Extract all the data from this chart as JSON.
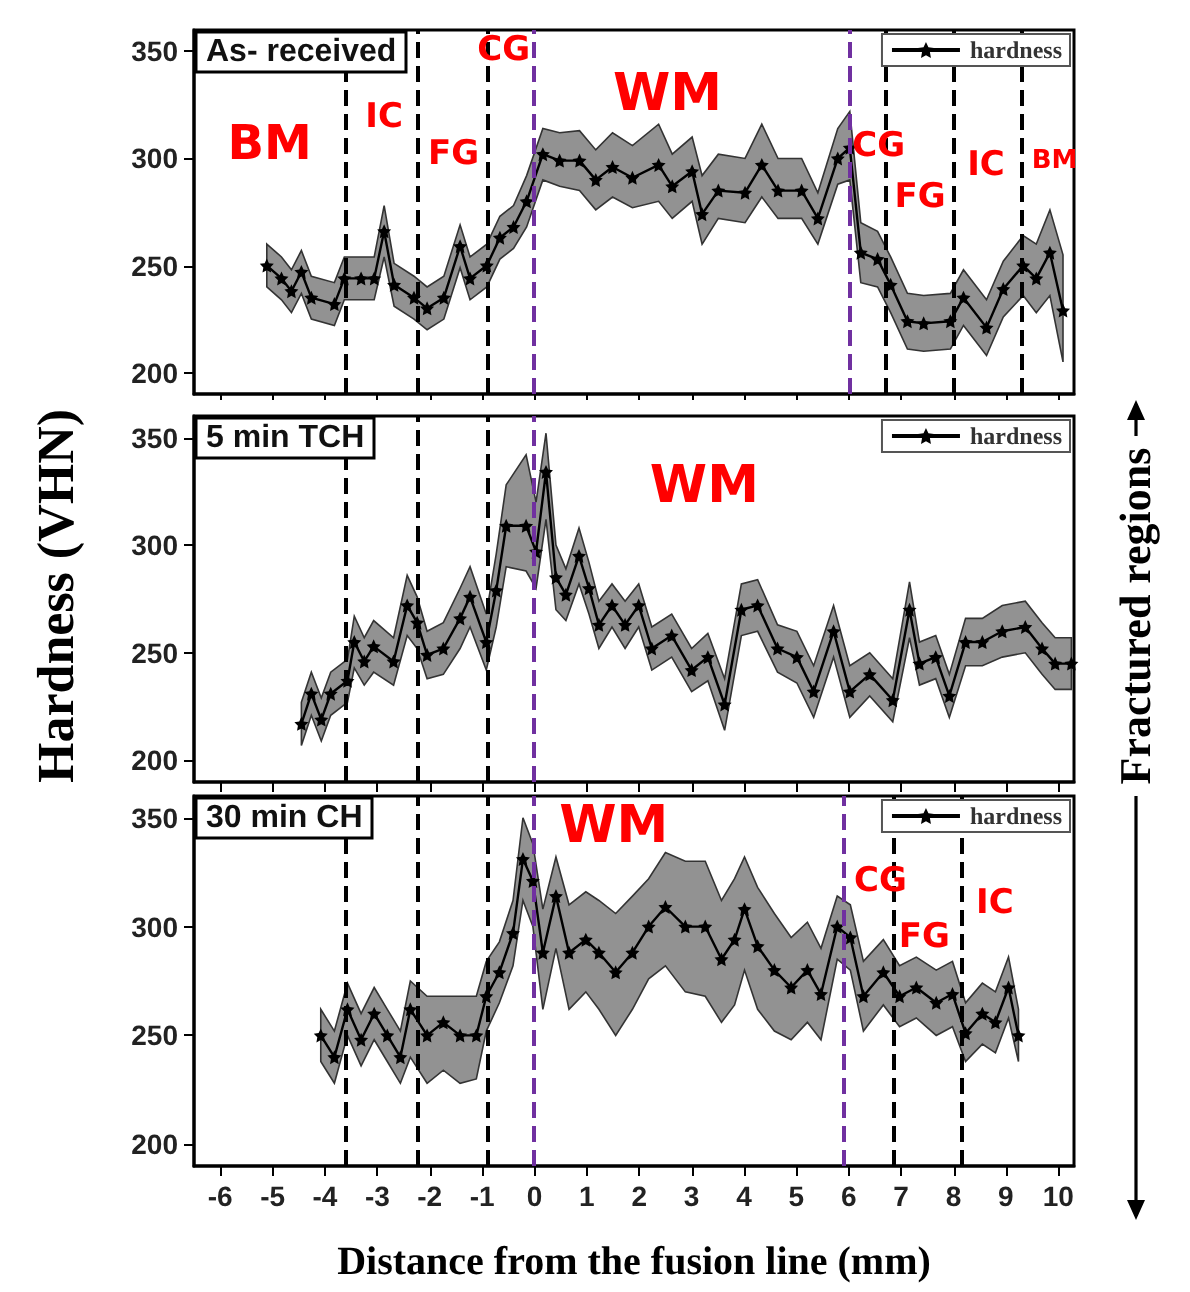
{
  "chart_data": [
    {
      "type": "line",
      "title": "As- received",
      "xlim": [
        -6.5,
        10.3
      ],
      "xticks": [
        -6,
        -5,
        -4,
        -3,
        -2,
        -1,
        0,
        1,
        2,
        3,
        4,
        5,
        6,
        7,
        8,
        9,
        10
      ],
      "ylim": [
        190,
        360
      ],
      "yticks": [
        200,
        250,
        300,
        350
      ],
      "tick_labels": "y",
      "grid": false,
      "legend": "top right",
      "marker": "star",
      "series": [
        {
          "name": "hardness",
          "color": "#000000",
          "x": [
            -5.11,
            -4.83,
            -4.64,
            -4.45,
            -4.26,
            -3.82,
            -3.63,
            -3.31,
            -3.06,
            -2.87,
            -2.68,
            -2.3,
            -2.05,
            -1.73,
            -1.42,
            -1.23,
            -0.91,
            -0.66,
            -0.4,
            -0.15,
            0.16,
            0.48,
            0.86,
            1.17,
            1.49,
            1.87,
            2.37,
            2.63,
            3.01,
            3.2,
            3.51,
            4.02,
            4.34,
            4.65,
            5.1,
            5.41,
            5.79,
            6.02,
            6.23,
            6.55,
            6.8,
            7.12,
            7.43,
            7.94,
            8.19,
            8.63,
            8.95,
            9.33,
            9.58,
            9.84,
            10.09
          ],
          "values": [
            250,
            244,
            238,
            247,
            235,
            232,
            244,
            244,
            244,
            266,
            241,
            235,
            230,
            235,
            259,
            244,
            250,
            263,
            268,
            280,
            302,
            299,
            299,
            290,
            296,
            291,
            297,
            287,
            294,
            274,
            285,
            284,
            297,
            285,
            285,
            272,
            300,
            305,
            256,
            253,
            241,
            224,
            223,
            224,
            235,
            221,
            239,
            250,
            244,
            256,
            229
          ],
          "lower": [
            240,
            234,
            228,
            237,
            225,
            222,
            234,
            234,
            234,
            254,
            231,
            225,
            220,
            225,
            249,
            234,
            240,
            253,
            258,
            268,
            290,
            287,
            285,
            276,
            282,
            277,
            280,
            272,
            280,
            260,
            272,
            270,
            282,
            272,
            272,
            260,
            288,
            290,
            242,
            240,
            228,
            211,
            210,
            211,
            222,
            208,
            226,
            236,
            228,
            236,
            205
          ],
          "upper": [
            260,
            254,
            248,
            257,
            245,
            242,
            254,
            254,
            254,
            278,
            251,
            245,
            240,
            245,
            269,
            254,
            260,
            273,
            278,
            292,
            314,
            312,
            313,
            304,
            312,
            306,
            316,
            302,
            310,
            292,
            302,
            300,
            316,
            300,
            300,
            284,
            314,
            322,
            270,
            266,
            254,
            237,
            236,
            237,
            248,
            234,
            252,
            264,
            260,
            276,
            255
          ]
        }
      ],
      "ref_lines": [
        {
          "axis": "x",
          "value": -3.6,
          "color": "#000000",
          "line_style": "dashed"
        },
        {
          "axis": "x",
          "value": -2.25,
          "color": "#000000",
          "line_style": "dashed"
        },
        {
          "axis": "x",
          "value": -0.9,
          "color": "#000000",
          "line_style": "dashed"
        },
        {
          "axis": "x",
          "value": 0,
          "color": "#7030a0",
          "line_style": "dashed"
        },
        {
          "axis": "x",
          "value": 6,
          "color": "#7030a0",
          "line_style": "dashed"
        },
        {
          "axis": "x",
          "value": 6.7,
          "color": "#000000",
          "line_style": "dashed"
        },
        {
          "axis": "x",
          "value": 8,
          "color": "#000000",
          "line_style": "dashed"
        },
        {
          "axis": "x",
          "value": 9.3,
          "color": "#000000",
          "line_style": "dashed"
        }
      ],
      "annotations": [
        "BM",
        "IC",
        "FG",
        "CG",
        "WM",
        "CG",
        "FG",
        "IC",
        "BM"
      ]
    },
    {
      "type": "line",
      "title": "5 min TCH",
      "ylabel": "Hardness (VHN)",
      "xlim": [
        -6.5,
        10.3
      ],
      "xticks": [
        -6,
        -5,
        -4,
        -3,
        -2,
        -1,
        0,
        1,
        2,
        3,
        4,
        5,
        6,
        7,
        8,
        9,
        10
      ],
      "ylim": [
        190,
        360
      ],
      "yticks": [
        200,
        250,
        300,
        350
      ],
      "tick_labels": "y",
      "grid": false,
      "legend": "top right",
      "marker": "star",
      "series": [
        {
          "name": "hardness",
          "color": "#000000",
          "x": [
            -4.45,
            -4.26,
            -4.07,
            -3.89,
            -3.57,
            -3.44,
            -3.25,
            -3.07,
            -2.69,
            -2.43,
            -2.24,
            -2.05,
            -1.74,
            -1.42,
            -1.23,
            -0.92,
            -0.73,
            -0.54,
            -0.16,
            0.03,
            0.22,
            0.41,
            0.6,
            0.85,
            1.04,
            1.23,
            1.48,
            1.73,
            1.99,
            2.24,
            2.62,
            3,
            3.31,
            3.63,
            3.95,
            4.26,
            4.64,
            5.01,
            5.33,
            5.71,
            6.02,
            6.4,
            6.84,
            7.16,
            7.35,
            7.66,
            7.92,
            8.23,
            8.55,
            8.93,
            9.37,
            9.69,
            9.94,
            10.25
          ],
          "values": [
            217,
            231,
            219,
            231,
            237,
            255,
            246,
            253,
            246,
            272,
            264,
            249,
            252,
            266,
            276,
            255,
            279,
            309,
            309,
            297,
            334,
            285,
            277,
            295,
            280,
            263,
            272,
            263,
            272,
            252,
            258,
            242,
            248,
            226,
            270,
            272,
            252,
            248,
            232,
            260,
            232,
            240,
            228,
            270,
            245,
            248,
            230,
            255,
            255,
            260,
            262,
            252,
            245,
            245
          ],
          "lower": [
            207,
            221,
            209,
            221,
            227,
            243,
            235,
            241,
            235,
            258,
            252,
            238,
            240,
            252,
            262,
            242,
            262,
            290,
            288,
            280,
            312,
            270,
            265,
            282,
            268,
            252,
            262,
            252,
            262,
            242,
            248,
            232,
            237,
            214,
            258,
            260,
            241,
            236,
            220,
            248,
            220,
            230,
            218,
            257,
            235,
            238,
            220,
            244,
            244,
            248,
            250,
            240,
            233,
            233
          ],
          "upper": [
            227,
            241,
            229,
            241,
            247,
            267,
            257,
            265,
            257,
            286,
            276,
            260,
            264,
            280,
            290,
            268,
            296,
            328,
            342,
            320,
            352,
            300,
            289,
            308,
            292,
            274,
            282,
            274,
            282,
            262,
            268,
            252,
            259,
            238,
            282,
            284,
            263,
            260,
            244,
            272,
            244,
            250,
            238,
            283,
            255,
            258,
            240,
            266,
            266,
            272,
            274,
            264,
            257,
            257
          ]
        }
      ],
      "ref_lines": [
        {
          "axis": "x",
          "value": -3.6,
          "color": "#000000",
          "line_style": "dashed"
        },
        {
          "axis": "x",
          "value": -2.25,
          "color": "#000000",
          "line_style": "dashed"
        },
        {
          "axis": "x",
          "value": -0.9,
          "color": "#000000",
          "line_style": "dashed"
        },
        {
          "axis": "x",
          "value": 0,
          "color": "#7030a0",
          "line_style": "dashed"
        }
      ],
      "annotations": [
        "WM",
        "Fractured regions"
      ]
    },
    {
      "type": "line",
      "title": "30 min CH",
      "xlabel": "Distance from the fusion line (mm)",
      "xlim": [
        -6.5,
        10.3
      ],
      "xticks": [
        -6,
        -5,
        -4,
        -3,
        -2,
        -1,
        0,
        1,
        2,
        3,
        4,
        5,
        6,
        7,
        8,
        9,
        10
      ],
      "ylim": [
        190,
        360
      ],
      "yticks": [
        200,
        250,
        300,
        350
      ],
      "grid": false,
      "legend": "top right",
      "marker": "star",
      "series": [
        {
          "name": "hardness",
          "color": "#000000",
          "x": [
            -4.08,
            -3.82,
            -3.57,
            -3.31,
            -3.06,
            -2.81,
            -2.56,
            -2.37,
            -2.05,
            -1.74,
            -1.42,
            -1.11,
            -0.92,
            -0.67,
            -0.41,
            -0.22,
            -0.03,
            0.16,
            0.41,
            0.66,
            0.98,
            1.23,
            1.55,
            1.87,
            2.18,
            2.5,
            2.88,
            3.26,
            3.57,
            3.82,
            4.01,
            4.26,
            4.58,
            4.9,
            5.21,
            5.47,
            5.78,
            6.03,
            6.28,
            6.66,
            6.97,
            7.29,
            7.67,
            7.98,
            8.23,
            8.55,
            8.8,
            9.05,
            9.24
          ],
          "values": [
            250,
            240,
            262,
            248,
            260,
            250,
            240,
            262,
            250,
            256,
            250,
            250,
            268,
            279,
            297,
            331,
            321,
            288,
            314,
            288,
            294,
            288,
            279,
            288,
            300,
            309,
            300,
            300,
            285,
            294,
            308,
            291,
            280,
            272,
            280,
            269,
            300,
            295,
            268,
            279,
            268,
            272,
            265,
            269,
            251,
            260,
            256,
            272,
            250
          ],
          "lower": [
            238,
            228,
            250,
            236,
            248,
            238,
            228,
            240,
            228,
            234,
            228,
            230,
            252,
            265,
            282,
            312,
            300,
            262,
            290,
            262,
            270,
            262,
            250,
            262,
            276,
            282,
            270,
            268,
            256,
            264,
            280,
            262,
            252,
            248,
            256,
            248,
            285,
            280,
            252,
            264,
            254,
            258,
            250,
            254,
            238,
            246,
            242,
            258,
            238
          ],
          "upper": [
            262,
            252,
            274,
            260,
            272,
            262,
            252,
            275,
            268,
            268,
            268,
            268,
            284,
            293,
            312,
            350,
            338,
            308,
            332,
            310,
            316,
            312,
            306,
            314,
            322,
            334,
            330,
            330,
            312,
            322,
            332,
            318,
            306,
            295,
            302,
            290,
            314,
            310,
            284,
            294,
            282,
            286,
            280,
            284,
            265,
            274,
            270,
            286,
            262
          ]
        }
      ],
      "ref_lines": [
        {
          "axis": "x",
          "value": -3.6,
          "color": "#000000",
          "line_style": "dashed"
        },
        {
          "axis": "x",
          "value": -2.25,
          "color": "#000000",
          "line_style": "dashed"
        },
        {
          "axis": "x",
          "value": -0.9,
          "color": "#000000",
          "line_style": "dashed"
        },
        {
          "axis": "x",
          "value": 0,
          "color": "#7030a0",
          "line_style": "dashed"
        },
        {
          "axis": "x",
          "value": 5.9,
          "color": "#7030a0",
          "line_style": "dashed"
        },
        {
          "axis": "x",
          "value": 6.85,
          "color": "#000000",
          "line_style": "dashed"
        },
        {
          "axis": "x",
          "value": 8.15,
          "color": "#000000",
          "line_style": "dashed"
        }
      ],
      "annotations": [
        "WM",
        "CG",
        "FG",
        "IC"
      ]
    }
  ]
}
